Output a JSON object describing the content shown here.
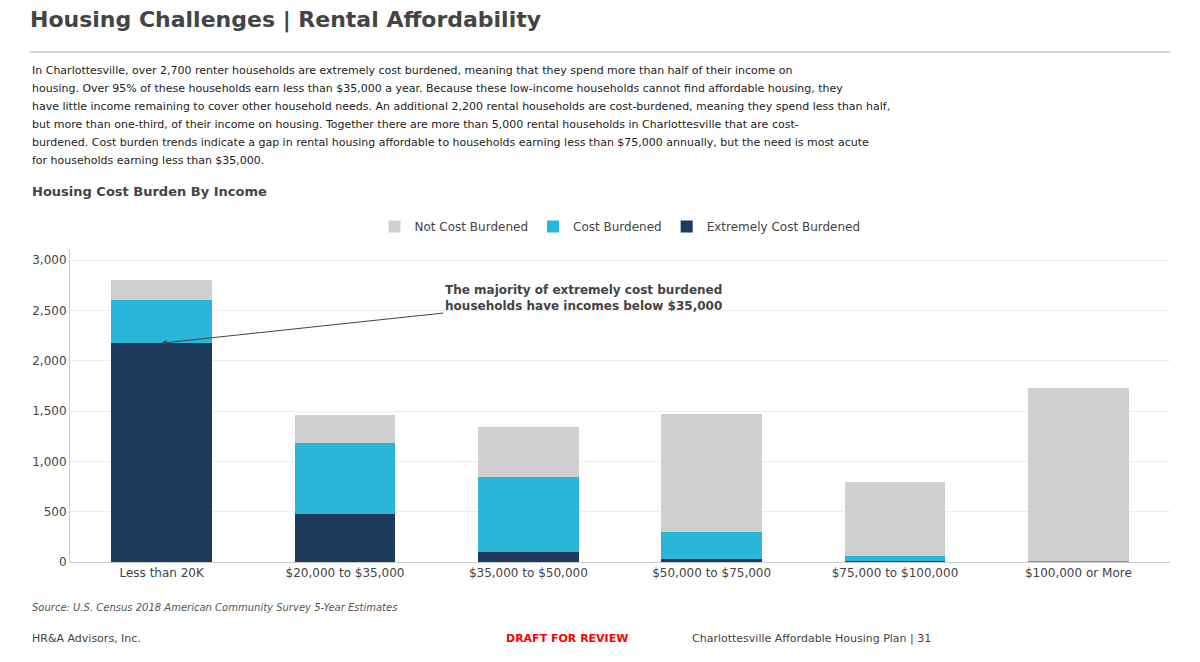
{
  "chart_data": {
    "type": "bar",
    "stacked": true,
    "title": "Housing Challenges | Rental Affordability",
    "body": [
      "In Charlottesville, over 2,700 renter households are extremely cost burdened, meaning that they spend more than half of their income on",
      "housing. Over 95% of these households earn less than $35,000 a year. Because these low-income households cannot find affordable housing, they",
      "have little income remaining to cover other household needs. An additional 2,200 rental households are cost-burdened, meaning they spend less than half,",
      "but more than one-third, of their income on housing. Together there are more than 5,000 rental households in Charlottesville that are cost-",
      "burdened. Cost burden trends indicate a gap in rental housing affordable to households earning less than $75,000 annually, but the need is most acute",
      "for households earning less than $35,000."
    ],
    "subtitle": "Housing Cost Burden By Income",
    "categories": [
      "Less than 20K",
      "$20,000 to $35,000",
      "$35,000 to $50,000",
      "$50,000 to $75,000",
      "$75,000 to $100,000",
      "$100,000 or More"
    ],
    "series": [
      {
        "name": "Extremely Cost Burdened",
        "color": "#1b3a5c",
        "values": [
          2175,
          480,
          95,
          30,
          10,
          0
        ]
      },
      {
        "name": "Cost Burdened",
        "color": "#29b6d8",
        "values": [
          430,
          700,
          750,
          270,
          50,
          10
        ]
      },
      {
        "name": "Not Cost Burdened",
        "color": "#d0d0d0",
        "values": [
          200,
          280,
          500,
          1170,
          730,
          1720
        ]
      }
    ],
    "ylim": [
      0,
      3100
    ],
    "yticks": [
      0,
      500,
      {
        "value": 1000,
        "label": "1,000"
      },
      {
        "value": 1500,
        "label": "1,500"
      },
      {
        "value": 2000,
        "label": "2,000"
      },
      {
        "value": 2500,
        "label": "2,500"
      },
      {
        "value": 3000,
        "label": "3,000"
      }
    ],
    "grid": true,
    "legend": "top",
    "annotations": [
      {
        "text": "The majority of extremely cost burdened\nhouseholds have incomes below $35,000"
      }
    ],
    "source": "Source: U.S. Census 2018 American Community Survey 5-Year Estimates",
    "footer": [
      "HR&A Advisors, Inc.",
      {
        "text": "DRAFT FOR REVIEW",
        "color": "red"
      },
      "Charlottesville Affordable Housing Plan | 31"
    ]
  }
}
